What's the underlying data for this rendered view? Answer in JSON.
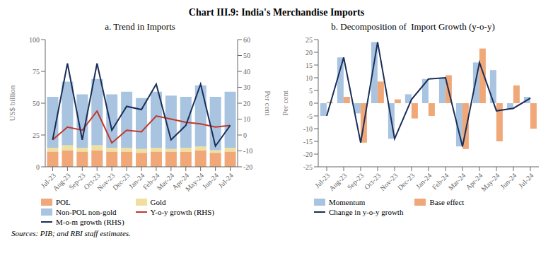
{
  "title": "Chart III.9: India's Merchandise Imports",
  "annotations": [
    "Sources: PIB; and RBI staff estimates."
  ],
  "chart_data": [
    {
      "type": "bar",
      "title": "a. Trend in Imports",
      "stacked": true,
      "grid": false,
      "legend": "bottom",
      "ylabel": "US$ billion",
      "y2label": "Per cent",
      "ylim": [
        0,
        100
      ],
      "yticks": [
        0,
        25,
        50,
        75,
        100
      ],
      "y2lim": [
        -20,
        60
      ],
      "y2ticks": [
        -20,
        -10,
        0,
        10,
        20,
        30,
        40,
        50,
        60
      ],
      "categories": [
        "Jul-23",
        "Aug-23",
        "Sep-23",
        "Oct-23",
        "Nov-23",
        "Dec-23",
        "Jan-24",
        "Feb-24",
        "Mar-24",
        "Apr-24",
        "May-24",
        "Jun-24",
        "Jul-24"
      ],
      "series": [
        {
          "name": "POL",
          "type": "bar",
          "color": "#f0a878",
          "values": [
            12,
            13,
            12,
            13,
            12,
            12,
            11,
            12,
            12,
            12,
            13,
            11,
            12
          ]
        },
        {
          "name": "Gold",
          "type": "bar",
          "color": "#f0e0a0",
          "values": [
            3,
            4,
            3,
            4,
            3,
            3,
            3,
            3,
            2,
            3,
            3,
            2,
            3
          ]
        },
        {
          "name": "Non-POL non-gold",
          "type": "bar",
          "color": "#a8c4e0",
          "values": [
            40,
            50,
            42,
            52,
            42,
            44,
            40,
            44,
            42,
            40,
            48,
            42,
            44
          ]
        },
        {
          "name": "Y-o-y growth (RHS)",
          "type": "line",
          "axis": "y2",
          "color": "#c0392b",
          "values": [
            -3,
            5,
            3,
            15,
            -5,
            3,
            2,
            12,
            10,
            8,
            7,
            5,
            6
          ]
        },
        {
          "name": "M-o-m growth (RHS)",
          "type": "line",
          "axis": "y2",
          "color": "#1a2e5a",
          "values": [
            -3,
            45,
            -3,
            45,
            3,
            18,
            16,
            32,
            -3,
            6,
            32,
            -7,
            6
          ]
        }
      ]
    },
    {
      "type": "bar",
      "title": "b. Decomposition of  Import Growth (y-o-y)",
      "grid": false,
      "legend": "bottom",
      "ylabel": "Per cent",
      "ylim": [
        -25,
        25
      ],
      "yticks": [
        -25,
        -20,
        -15,
        -10,
        -5,
        0,
        5,
        10,
        15,
        20,
        25
      ],
      "categories": [
        "Jul-23",
        "Aug-23",
        "Sep-23",
        "Oct-23",
        "Nov-23",
        "Dec-23",
        "Jan-24",
        "Feb-24",
        "Mar-24",
        "Apr-24",
        "May-24",
        "Jun-24",
        "Jul-24"
      ],
      "series": [
        {
          "name": "Momentum",
          "type": "bar",
          "color": "#a8c4e0",
          "values": [
            -5,
            18,
            -4,
            24,
            -14,
            3.5,
            9.5,
            10,
            -17,
            16,
            13,
            -2.5,
            2.5
          ]
        },
        {
          "name": "Base effect",
          "type": "bar",
          "color": "#f0a878",
          "values": [
            0.5,
            2.5,
            -15.5,
            8.5,
            1.5,
            -6,
            -5,
            11,
            -18,
            21.5,
            -15,
            7,
            -10
          ]
        },
        {
          "name": "Change in y-o-y growth",
          "type": "line",
          "color": "#1a2e5a",
          "values": [
            -5,
            18,
            -15.5,
            24,
            -14,
            1.5,
            9.5,
            10,
            -17,
            16,
            -3,
            -2,
            2
          ]
        }
      ]
    }
  ]
}
